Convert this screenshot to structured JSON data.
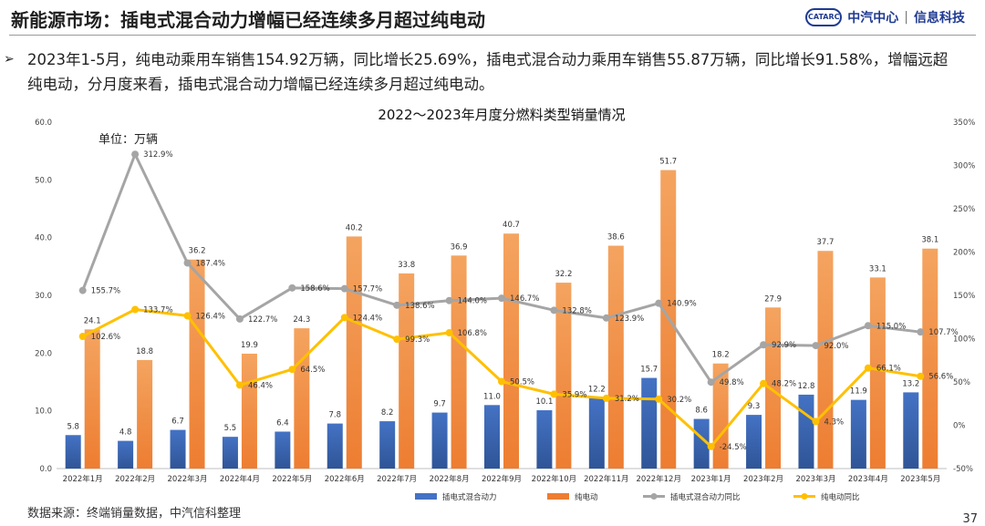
{
  "header": {
    "title": "新能源市场：插电式混合动力增幅已经连续多月超过纯电动",
    "brand_logo": "CATARC",
    "brand_name": "中汽中心",
    "brand_sep": "|",
    "brand_sub": "信息科技"
  },
  "bullet": {
    "mark": "➢",
    "text": "2023年1-5月，纯电动乘用车销售154.92万辆，同比增长25.69%，插电式混合动力乘用车销售55.87万辆，同比增长91.58%，增幅远超纯电动，分月度来看，插电式混合动力增幅已经连续多月超过纯电动。"
  },
  "source": "数据来源：终端销量数据，中汽信科整理",
  "page_number": "37",
  "colors": {
    "phev": "#4472C4",
    "bev": "#ED7D31",
    "phev_yoy": "#A5A5A5",
    "bev_yoy": "#FFC000"
  },
  "chart_data": {
    "type": "bar",
    "title": "2022～2023年月度分燃料类型销量情况",
    "unit_label": "单位：万辆",
    "categories": [
      "2022年1月",
      "2022年2月",
      "2022年3月",
      "2022年4月",
      "2022年5月",
      "2022年6月",
      "2022年7月",
      "2022年8月",
      "2022年9月",
      "2022年10月",
      "2022年11月",
      "2022年12月",
      "2023年1月",
      "2023年2月",
      "2023年3月",
      "2023年4月",
      "2023年5月"
    ],
    "y_left": {
      "min": 0,
      "max": 60,
      "ticks": [
        "0.0",
        "10.0",
        "20.0",
        "30.0",
        "40.0",
        "50.0",
        "60.0"
      ]
    },
    "y_right": {
      "min": -50,
      "max": 350,
      "ticks": [
        "-50%",
        "0%",
        "50%",
        "100%",
        "150%",
        "200%",
        "250%",
        "300%",
        "350%"
      ]
    },
    "series": [
      {
        "name": "插电式混合动力",
        "kind": "bar",
        "axis": "left",
        "values": [
          5.8,
          4.8,
          6.7,
          5.5,
          6.4,
          7.8,
          8.2,
          9.7,
          11.0,
          10.1,
          12.2,
          15.7,
          8.6,
          9.3,
          12.8,
          11.9,
          13.2
        ],
        "labels": [
          "5.8",
          "4.8",
          "6.7",
          "5.5",
          "6.4",
          "7.8",
          "8.2",
          "9.7",
          "11.0",
          "10.1",
          "12.2",
          "15.7",
          "8.6",
          "9.3",
          "12.8",
          "11.9",
          "13.2"
        ]
      },
      {
        "name": "纯电动",
        "kind": "bar",
        "axis": "left",
        "values": [
          24.1,
          18.8,
          36.2,
          19.9,
          24.3,
          40.2,
          33.8,
          36.9,
          40.7,
          32.2,
          38.6,
          51.7,
          18.2,
          27.9,
          37.7,
          33.1,
          38.1
        ],
        "labels": [
          "24.1",
          "18.8",
          "36.2",
          "19.9",
          "24.3",
          "40.2",
          "33.8",
          "36.9",
          "40.7",
          "32.2",
          "38.6",
          "51.7",
          "18.2",
          "27.9",
          "37.7",
          "33.1",
          "38.1"
        ]
      },
      {
        "name": "插电式混合动力同比",
        "kind": "line",
        "axis": "right",
        "values": [
          155.7,
          312.9,
          187.4,
          122.7,
          158.6,
          157.7,
          138.6,
          144.0,
          146.7,
          132.8,
          123.9,
          140.9,
          49.8,
          92.9,
          92.0,
          115.0,
          107.7
        ],
        "labels": [
          "155.7%",
          "312.9%",
          "187.4%",
          "122.7%",
          "158.6%",
          "157.7%",
          "138.6%",
          "144.0%",
          "146.7%",
          "132.8%",
          "123.9%",
          "140.9%",
          "49.8%",
          "92.9%",
          "92.0%",
          "115.0%",
          "107.7%"
        ]
      },
      {
        "name": "纯电动同比",
        "kind": "line",
        "axis": "right",
        "values": [
          102.6,
          133.7,
          126.4,
          46.4,
          64.5,
          124.4,
          99.3,
          106.8,
          50.5,
          35.9,
          31.2,
          30.2,
          -24.5,
          48.2,
          4.3,
          66.1,
          56.6
        ],
        "labels": [
          "102.6%",
          "133.7%",
          "126.4%",
          "46.4%",
          "64.5%",
          "124.4%",
          "99.3%",
          "106.8%",
          "50.5%",
          "35.9%",
          "31.2%",
          "30.2%",
          "-24.5%",
          "48.2%",
          "4.3%",
          "66.1%",
          "56.6%"
        ]
      }
    ],
    "legend": [
      "插电式混合动力",
      "纯电动",
      "插电式混合动力同比",
      "纯电动同比"
    ],
    "legend_position": "bottom"
  }
}
